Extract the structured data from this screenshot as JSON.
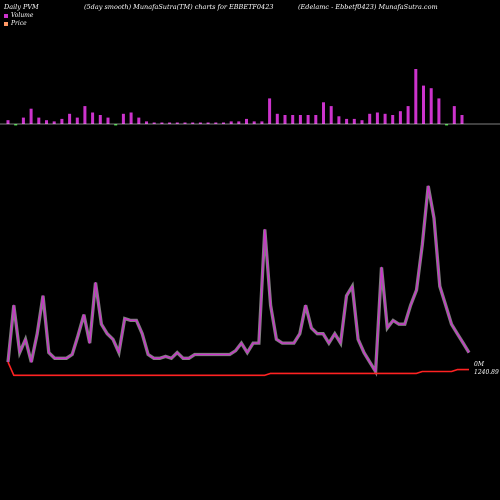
{
  "header": {
    "left": "Daily PVM",
    "middle": "(5day smooth) MunafaSutra(TM) charts for EBBETF0423",
    "right": "(Edelamc - Ebbetf0423) MunafaSutra.com"
  },
  "legend": [
    {
      "label": "Volume",
      "color": "#cc33cc"
    },
    {
      "label": "Price",
      "color": "#ff9966"
    }
  ],
  "colors": {
    "volume_up": "#cc33cc",
    "volume_down": "#33cc33",
    "pvm_line": "#cc33cc",
    "price_line": "#ff2222",
    "zero_line": "#ffffff"
  },
  "end_labels": {
    "volume_end": "0M",
    "price_end": "1240.89"
  },
  "chart_data": [
    {
      "type": "bar",
      "name": "Volume",
      "bars": [
        {
          "v": 3,
          "dir": "up"
        },
        {
          "v": -1,
          "dir": "down"
        },
        {
          "v": 5,
          "dir": "up"
        },
        {
          "v": 12,
          "dir": "up"
        },
        {
          "v": 5,
          "dir": "up"
        },
        {
          "v": 3,
          "dir": "up"
        },
        {
          "v": 2,
          "dir": "up"
        },
        {
          "v": 4,
          "dir": "up"
        },
        {
          "v": 8,
          "dir": "up"
        },
        {
          "v": 5,
          "dir": "up"
        },
        {
          "v": 14,
          "dir": "up"
        },
        {
          "v": 9,
          "dir": "up"
        },
        {
          "v": 7,
          "dir": "up"
        },
        {
          "v": 5,
          "dir": "up"
        },
        {
          "v": -1,
          "dir": "down"
        },
        {
          "v": 8,
          "dir": "up"
        },
        {
          "v": 9,
          "dir": "up"
        },
        {
          "v": 5,
          "dir": "up"
        },
        {
          "v": 2,
          "dir": "up"
        },
        {
          "v": 1,
          "dir": "up"
        },
        {
          "v": 1,
          "dir": "up"
        },
        {
          "v": 1,
          "dir": "up"
        },
        {
          "v": 1,
          "dir": "up"
        },
        {
          "v": 1,
          "dir": "up"
        },
        {
          "v": 1,
          "dir": "up"
        },
        {
          "v": 1,
          "dir": "up"
        },
        {
          "v": 1,
          "dir": "up"
        },
        {
          "v": 1,
          "dir": "up"
        },
        {
          "v": 1,
          "dir": "up"
        },
        {
          "v": 2,
          "dir": "up"
        },
        {
          "v": 2,
          "dir": "up"
        },
        {
          "v": 4,
          "dir": "up"
        },
        {
          "v": 2,
          "dir": "up"
        },
        {
          "v": 2,
          "dir": "up"
        },
        {
          "v": 20,
          "dir": "up"
        },
        {
          "v": 8,
          "dir": "up"
        },
        {
          "v": 7,
          "dir": "up"
        },
        {
          "v": 7,
          "dir": "up"
        },
        {
          "v": 7,
          "dir": "up"
        },
        {
          "v": 7,
          "dir": "up"
        },
        {
          "v": 7,
          "dir": "up"
        },
        {
          "v": 17,
          "dir": "up"
        },
        {
          "v": 14,
          "dir": "up"
        },
        {
          "v": 6,
          "dir": "up"
        },
        {
          "v": 4,
          "dir": "up"
        },
        {
          "v": 4,
          "dir": "up"
        },
        {
          "v": 3,
          "dir": "up"
        },
        {
          "v": 8,
          "dir": "up"
        },
        {
          "v": 9,
          "dir": "up"
        },
        {
          "v": 8,
          "dir": "up"
        },
        {
          "v": 7,
          "dir": "up"
        },
        {
          "v": 10,
          "dir": "up"
        },
        {
          "v": 14,
          "dir": "up"
        },
        {
          "v": 43,
          "dir": "up"
        },
        {
          "v": 30,
          "dir": "up"
        },
        {
          "v": 28,
          "dir": "up"
        },
        {
          "v": 20,
          "dir": "up"
        },
        {
          "v": -1,
          "dir": "down"
        },
        {
          "v": 14,
          "dir": "up"
        },
        {
          "v": 7,
          "dir": "up"
        }
      ]
    },
    {
      "type": "line",
      "name": "PVM",
      "values": [
        10,
        40,
        15,
        22,
        10,
        25,
        45,
        15,
        12,
        12,
        12,
        14,
        24,
        35,
        20,
        52,
        30,
        25,
        22,
        15,
        33,
        32,
        32,
        25,
        14,
        12,
        12,
        13,
        12,
        15,
        12,
        12,
        14,
        14,
        14,
        14,
        14,
        14,
        14,
        16,
        20,
        15,
        20,
        20,
        80,
        40,
        22,
        20,
        20,
        20,
        25,
        40,
        28,
        25,
        25,
        20,
        25,
        20,
        45,
        50,
        22,
        15,
        10,
        5,
        60,
        28,
        32,
        30,
        30,
        40,
        48,
        72,
        103,
        86,
        50,
        40,
        30,
        25,
        20,
        15
      ]
    },
    {
      "type": "line",
      "name": "Price",
      "values": [
        10,
        3,
        3,
        3,
        3,
        3,
        3,
        3,
        3,
        3,
        3,
        3,
        3,
        3,
        3,
        3,
        3,
        3,
        3,
        3,
        3,
        3,
        3,
        3,
        3,
        3,
        3,
        3,
        3,
        3,
        3,
        3,
        3,
        3,
        3,
        3,
        3,
        3,
        3,
        3,
        3,
        3,
        3,
        3,
        3,
        4,
        4,
        4,
        4,
        4,
        4,
        4,
        4,
        4,
        4,
        4,
        4,
        4,
        4,
        4,
        4,
        4,
        4,
        4,
        4,
        4,
        4,
        4,
        4,
        4,
        4,
        5,
        5,
        5,
        5,
        5,
        5,
        6,
        6,
        6
      ]
    }
  ]
}
